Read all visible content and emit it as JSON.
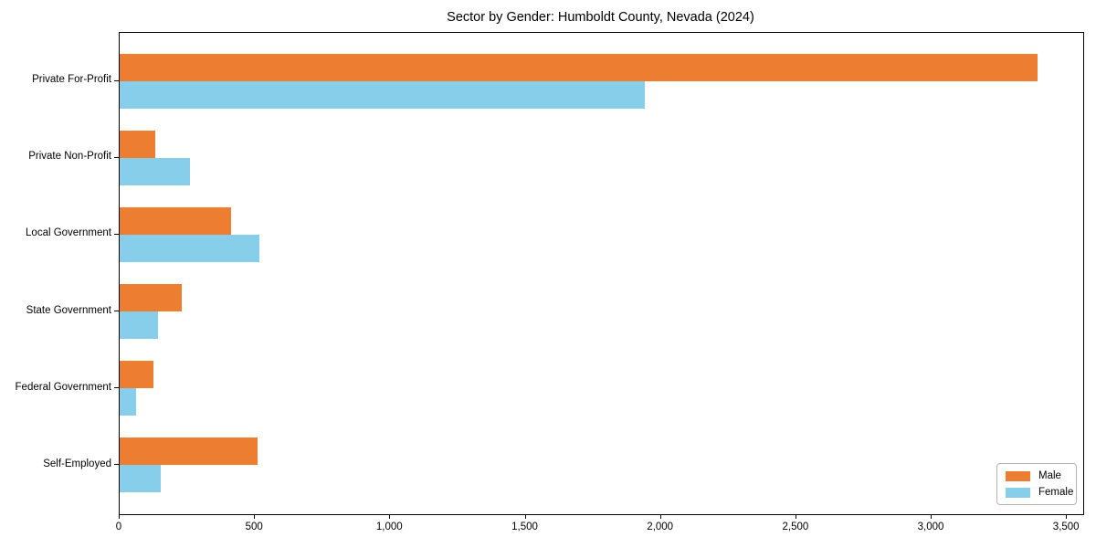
{
  "title": "Sector by Gender: Humboldt County, Nevada (2024)",
  "chart_data": {
    "type": "bar",
    "orientation": "horizontal",
    "title": "Sector by Gender: Humboldt County, Nevada (2024)",
    "categories": [
      "Private For-Profit",
      "Private Non-Profit",
      "Local Government",
      "State Government",
      "Federal Government",
      "Self-Employed"
    ],
    "series": [
      {
        "name": "Male",
        "color": "#ed7d31",
        "values": [
          3390,
          130,
          410,
          230,
          125,
          510
        ]
      },
      {
        "name": "Female",
        "color": "#87ceeb",
        "values": [
          1940,
          260,
          515,
          140,
          60,
          150
        ]
      }
    ],
    "xlim": [
      0,
      3560
    ],
    "xticks": [
      0,
      500,
      1000,
      1500,
      2000,
      2500,
      3000,
      3500
    ],
    "xtick_labels": [
      "0",
      "500",
      "1,000",
      "1,500",
      "2,000",
      "2,500",
      "3,000",
      "3,500"
    ],
    "xlabel": "",
    "ylabel": "",
    "grid": false,
    "legend_position": "lower right"
  }
}
